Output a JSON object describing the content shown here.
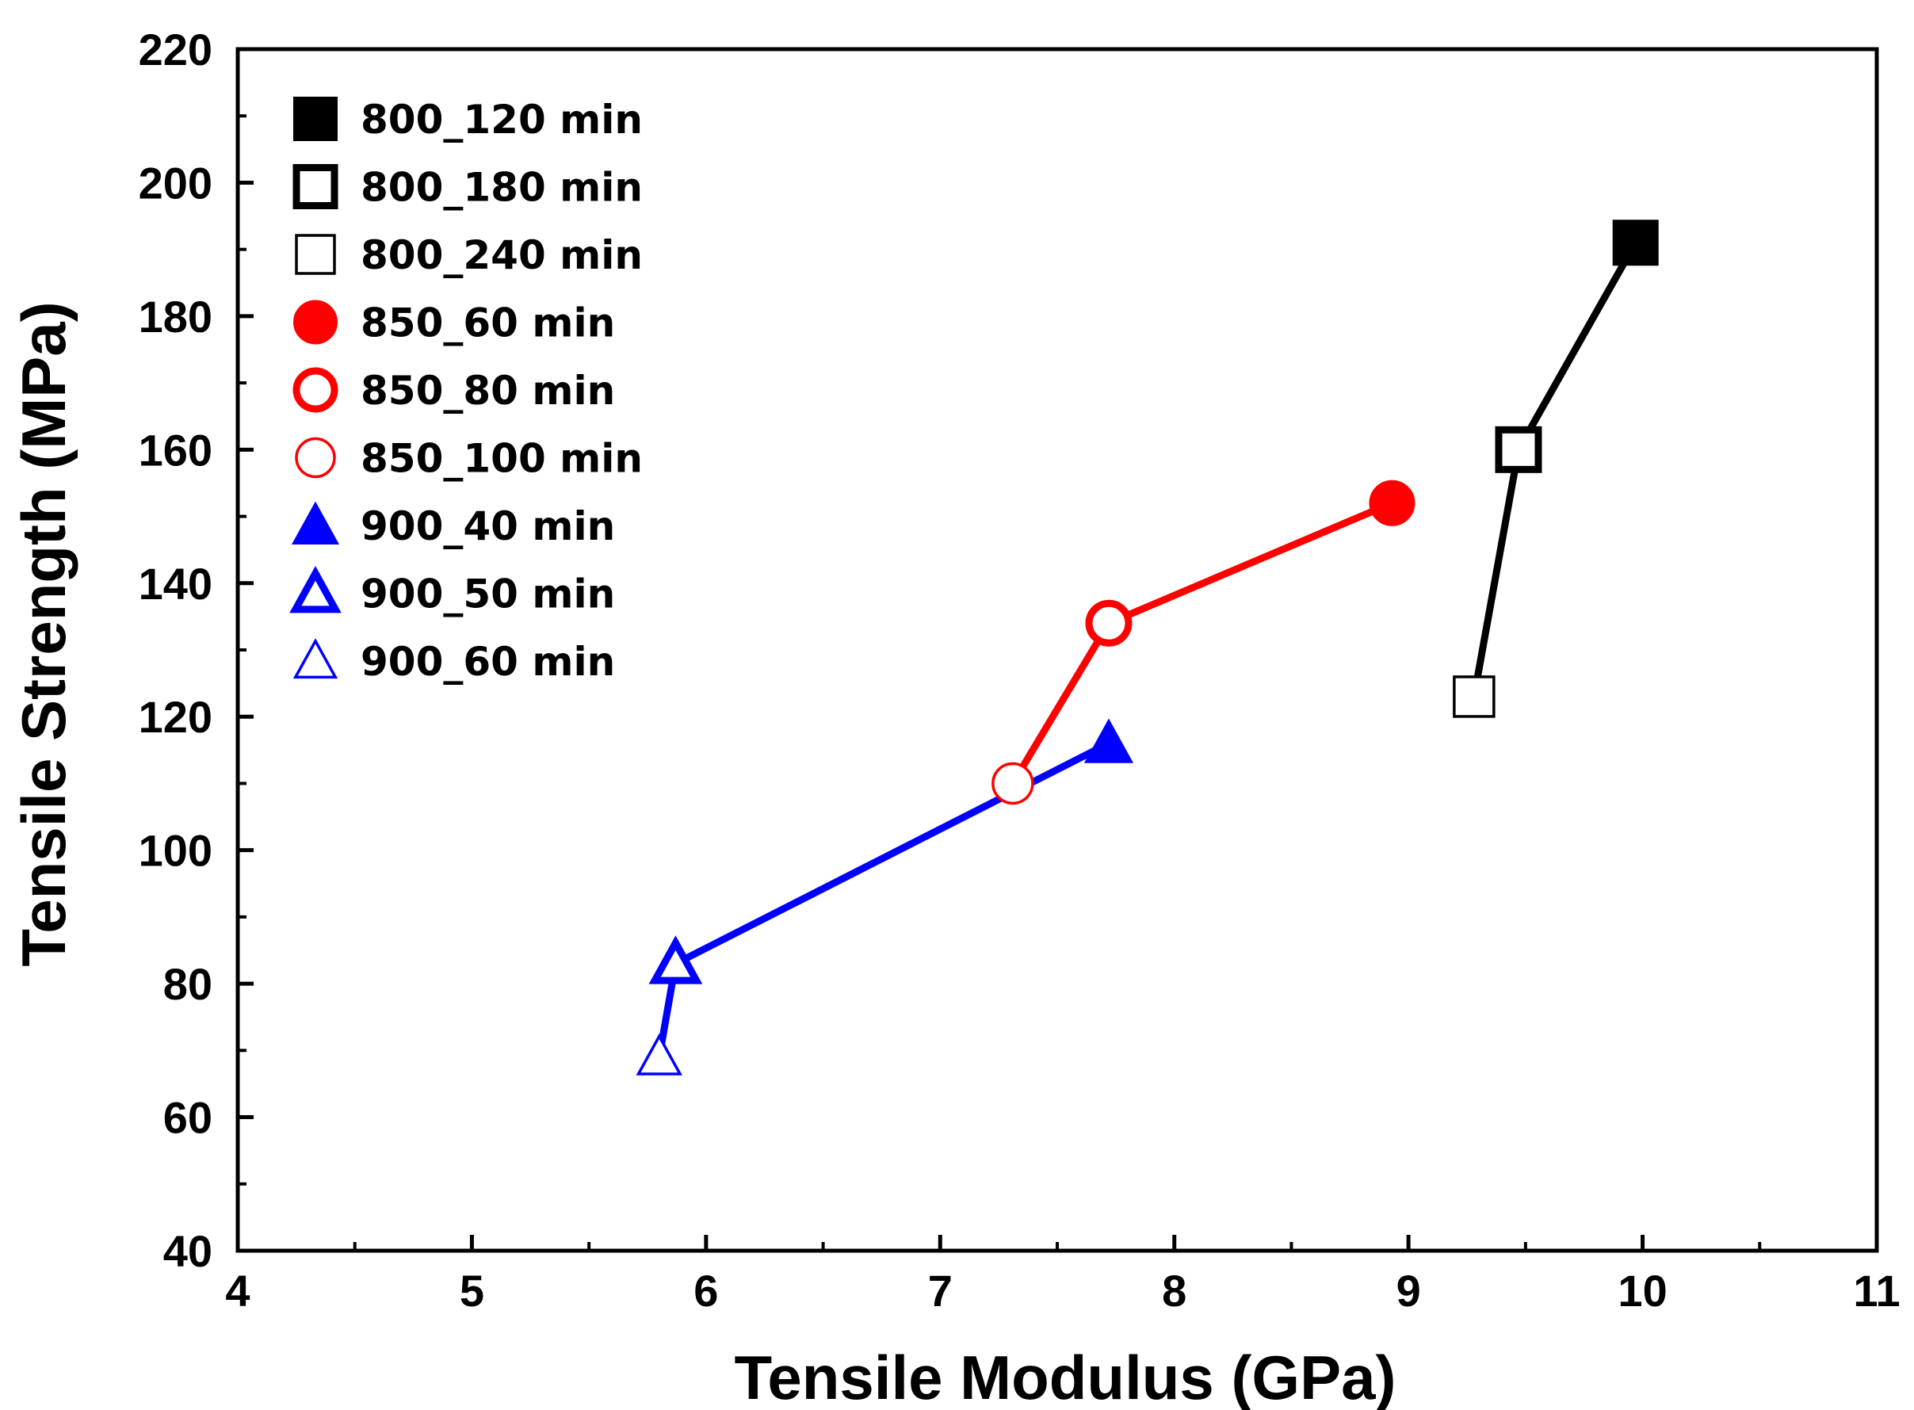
{
  "chart_data": {
    "type": "scatter",
    "xlabel": "Tensile Modulus (GPa)",
    "ylabel": "Tensile Strength (MPa)",
    "xlim": [
      4,
      11
    ],
    "ylim": [
      40,
      220
    ],
    "x_ticks": [
      4,
      5,
      6,
      7,
      8,
      9,
      10,
      11
    ],
    "y_ticks": [
      40,
      60,
      80,
      100,
      120,
      140,
      160,
      180,
      200,
      220
    ],
    "grid": false,
    "legend_position": "top-left",
    "groups": [
      {
        "name": "800",
        "color": "#000000",
        "marker": "square",
        "connected": true,
        "points": [
          {
            "label": "800_120  min",
            "x": 9.97,
            "y": 191,
            "style": "filled"
          },
          {
            "label": "800_180  min",
            "x": 9.47,
            "y": 160,
            "style": "open-thick"
          },
          {
            "label": "800_240  min",
            "x": 9.28,
            "y": 123,
            "style": "open-thin"
          }
        ]
      },
      {
        "name": "850",
        "color": "#ff0000",
        "marker": "circle",
        "connected": true,
        "points": [
          {
            "label": "850_60  min",
            "x": 8.93,
            "y": 152,
            "style": "filled"
          },
          {
            "label": "850_80  min",
            "x": 7.72,
            "y": 134,
            "style": "open-thick"
          },
          {
            "label": "850_100  min",
            "x": 7.31,
            "y": 110,
            "style": "open-thin"
          }
        ]
      },
      {
        "name": "900",
        "color": "#0000ff",
        "marker": "triangle",
        "connected": true,
        "points": [
          {
            "label": "900_40  min",
            "x": 7.72,
            "y": 116,
            "style": "filled"
          },
          {
            "label": "900_50  min",
            "x": 5.87,
            "y": 83,
            "style": "open-thick"
          },
          {
            "label": "900_60  min",
            "x": 5.8,
            "y": 69,
            "style": "open-thin"
          }
        ]
      }
    ]
  }
}
